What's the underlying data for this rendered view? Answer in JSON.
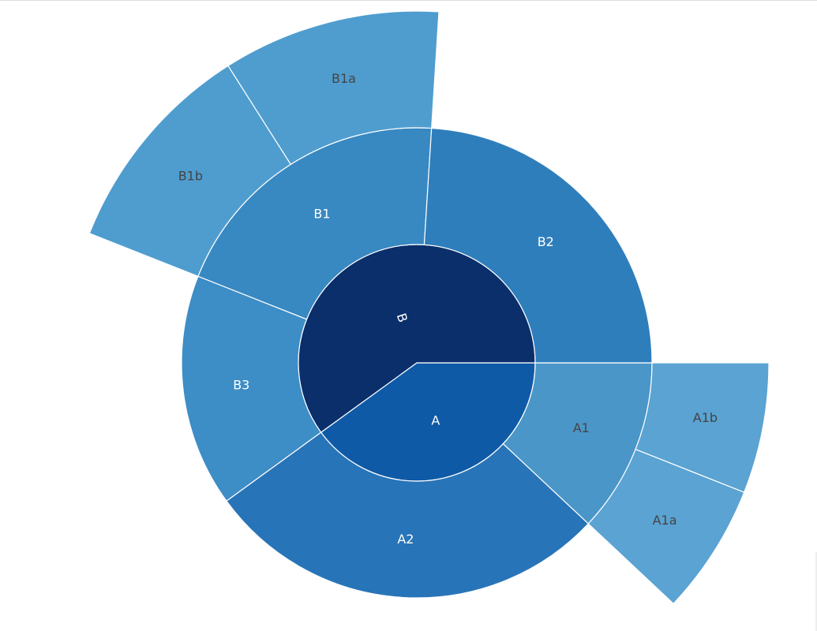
{
  "chart_data": {
    "type": "sunburst",
    "title": "",
    "direction": "clockwise",
    "start_angle": "3 o'clock",
    "nodes": [
      {
        "label": "A",
        "value": 40,
        "color": "#0f5aa6",
        "text_color": "#ffffff",
        "children": [
          {
            "label": "A1",
            "value": 12,
            "color": "#4b96c8",
            "text_color": "#444444",
            "children": [
              {
                "label": "A1b",
                "value": 6,
                "color": "#5aa3d3",
                "text_color": "#444444"
              },
              {
                "label": "A1a",
                "value": 6,
                "color": "#5aa3d3",
                "text_color": "#444444"
              }
            ]
          },
          {
            "label": "A2",
            "value": 28,
            "color": "#2874b8",
            "text_color": "#ffffff"
          }
        ]
      },
      {
        "label": "B",
        "value": 60,
        "color": "#0a2f6b",
        "text_color": "#ffffff",
        "children": [
          {
            "label": "B3",
            "value": 16,
            "color": "#3d8dc6",
            "text_color": "#ffffff"
          },
          {
            "label": "B1",
            "value": 20,
            "color": "#3888c2",
            "text_color": "#ffffff",
            "children": [
              {
                "label": "B1b",
                "value": 10,
                "color": "#4f9dcf",
                "text_color": "#444444"
              },
              {
                "label": "B1a",
                "value": 10,
                "color": "#4f9dcf",
                "text_color": "#444444"
              }
            ]
          },
          {
            "label": "B2",
            "value": 24,
            "color": "#2f7ebc",
            "text_color": "#ffffff"
          }
        ]
      }
    ]
  }
}
